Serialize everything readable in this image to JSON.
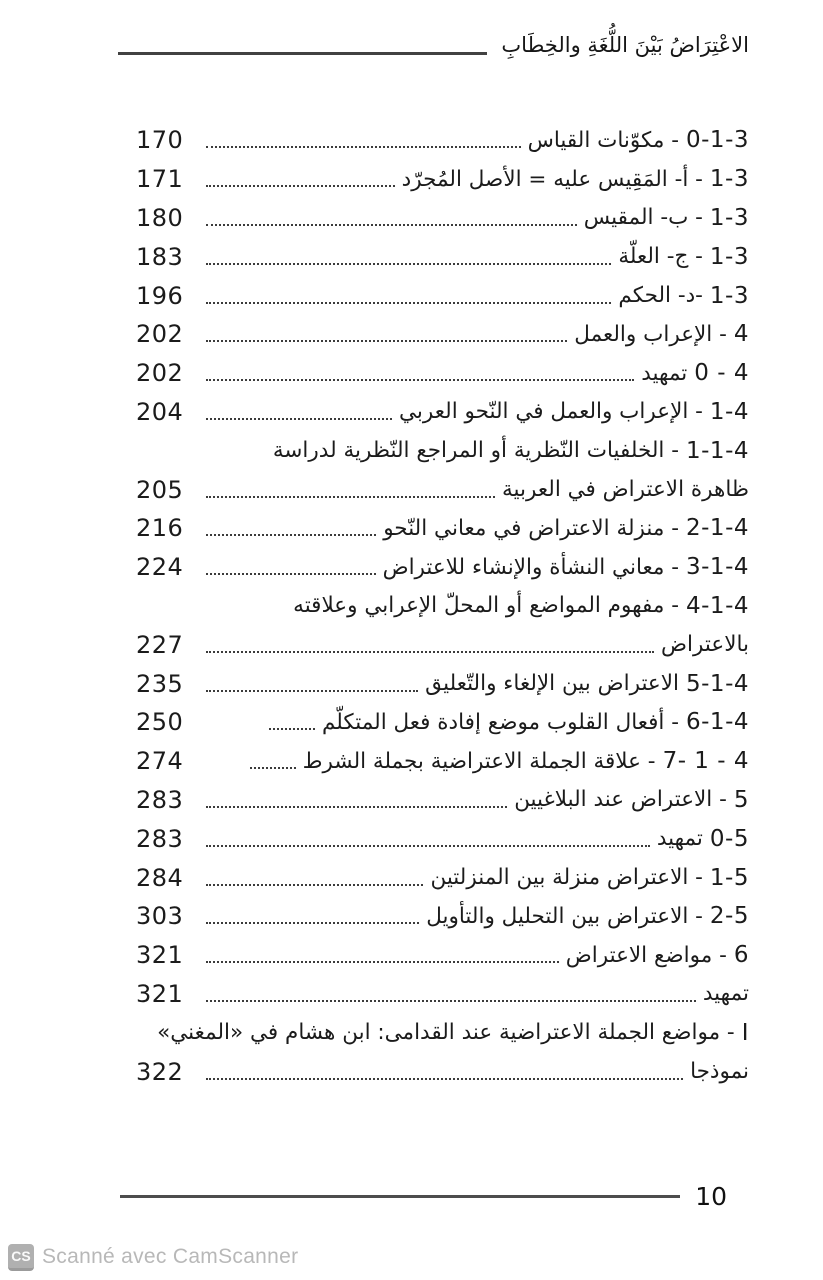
{
  "header": {
    "book_title": "الاعْتِرَاضُ بَيْنَ اللُّغَةِ والخِطَابِ"
  },
  "toc": {
    "entries": [
      {
        "num": "3-1-0",
        "title": "- مكوّنات القياس",
        "page": "170"
      },
      {
        "num": "3-1",
        "title": "- أ- المَقِيس عليه = الأصل المُجرّد",
        "page": "171"
      },
      {
        "num": "3-1",
        "title": "- ب- المقيس",
        "page": "180"
      },
      {
        "num": "3-1",
        "title": "- ج- العلّة",
        "page": "183"
      },
      {
        "num": "3-1",
        "title": "-د- الحكم",
        "page": "196"
      },
      {
        "num": "4",
        "title": "- الإعراب والعمل",
        "page": "202"
      },
      {
        "num": "4 - 0",
        "title": "تمهيد",
        "page": "202"
      },
      {
        "num": "4-1",
        "title": "- الإعراب والعمل في النّحو العربي",
        "page": "204"
      },
      {
        "num": "4-1-1",
        "title": "- الخلفيات النّظرية أو المراجع النّظرية لدراسة"
      },
      {
        "title": "ظاهرة الاعتراض في العربية",
        "page": "205"
      },
      {
        "num": "4-1-2",
        "title": "- منزلة الاعتراض في معاني النّحو",
        "page": "216"
      },
      {
        "num": "4-1-3",
        "title": "- معاني النشأة والإنشاء للاعتراض",
        "page": "224"
      },
      {
        "num": "4-1-4",
        "title": "- مفهوم المواضع أو المحلّ الإعرابي وعلاقته"
      },
      {
        "title": "بالاعتراض",
        "page": "227"
      },
      {
        "num": "4-1-5",
        "title": "الاعتراض بين الإلغاء والتّعليق",
        "page": "235"
      },
      {
        "num": "4-1-6",
        "title": "- أفعال القلوب موضع إفادة فعل المتكلّم",
        "page": "250"
      },
      {
        "num": "4 - 1 -7",
        "title": "- علاقة الجملة الاعتراضية بجملة الشرط",
        "page": "274"
      },
      {
        "num": "5",
        "title": "- الاعتراض عند البلاغيين",
        "page": "283"
      },
      {
        "num": "5-0",
        "title": "تمهيد",
        "page": "283"
      },
      {
        "num": "5-1",
        "title": "- الاعتراض منزلة بين المنزلتين",
        "page": "284"
      },
      {
        "num": "5-2",
        "title": "- الاعتراض بين التحليل والتأويل",
        "page": "303"
      },
      {
        "num": "6",
        "title": "- مواضع الاعتراض",
        "page": "321"
      },
      {
        "title": "تمهيد",
        "page": "321"
      },
      {
        "num": "I",
        "title": "- مواضع الجملة الاعتراضية عند القدامى: ابن هشام في «المغني»"
      },
      {
        "title": "نموذجا",
        "page": "322"
      }
    ]
  },
  "footer": {
    "page_number": "10"
  },
  "watermark": {
    "logo": "CS",
    "text": "Scanné avec CamScanner"
  },
  "colors": {
    "ink": "#1b1b1b",
    "rule": "#4d4d4d",
    "watermark_gray": "#b8b8b8"
  }
}
